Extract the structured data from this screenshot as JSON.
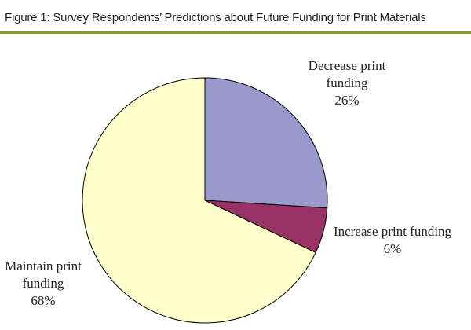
{
  "figure": {
    "title": "Figure 1: Survey Respondents’ Predictions about Future Funding for Print Materials",
    "rule_color": "#8a9a2c"
  },
  "chart_data": {
    "type": "pie",
    "title": "Figure 1: Survey Respondents’ Predictions about Future Funding for Print Materials",
    "start_angle_deg": 0,
    "direction": "clockwise",
    "slices": [
      {
        "label_lines": [
          "Decrease print",
          "funding"
        ],
        "percent_label": "26%",
        "value": 26,
        "color": "#9999cc"
      },
      {
        "label_lines": [
          "Increase print funding"
        ],
        "percent_label": "6%",
        "value": 6,
        "color": "#993366"
      },
      {
        "label_lines": [
          "Maintain print",
          "funding"
        ],
        "percent_label": "68%",
        "value": 68,
        "color": "#ffffcc"
      }
    ]
  }
}
